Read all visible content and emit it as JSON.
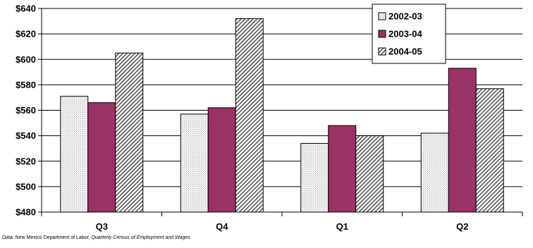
{
  "chart_data": {
    "type": "bar",
    "categories": [
      "Q3",
      "Q4",
      "Q1",
      "Q2"
    ],
    "series": [
      {
        "name": "2002-03",
        "values": [
          571,
          557,
          534,
          542
        ],
        "pattern": "dotted",
        "color": "#f0f0f0"
      },
      {
        "name": "2003-04",
        "values": [
          566,
          562,
          548,
          593
        ],
        "pattern": "solid",
        "color": "#993366"
      },
      {
        "name": "2004-05",
        "values": [
          605,
          632,
          540,
          577
        ],
        "pattern": "hatched",
        "color": "#d9d9d9"
      }
    ],
    "ylim": [
      480,
      640
    ],
    "yticks": [
      480,
      500,
      520,
      540,
      560,
      580,
      600,
      620,
      640
    ],
    "ytick_labels": [
      "$480",
      "$500",
      "$520",
      "$540",
      "$560",
      "$580",
      "$600",
      "$620",
      "$640"
    ],
    "grid": true,
    "legend_position": "top-right"
  },
  "source": {
    "prefix": "Data:  New Mexico Department of Labor, ",
    "title": "Quarterly Census of Employment and Wages"
  }
}
